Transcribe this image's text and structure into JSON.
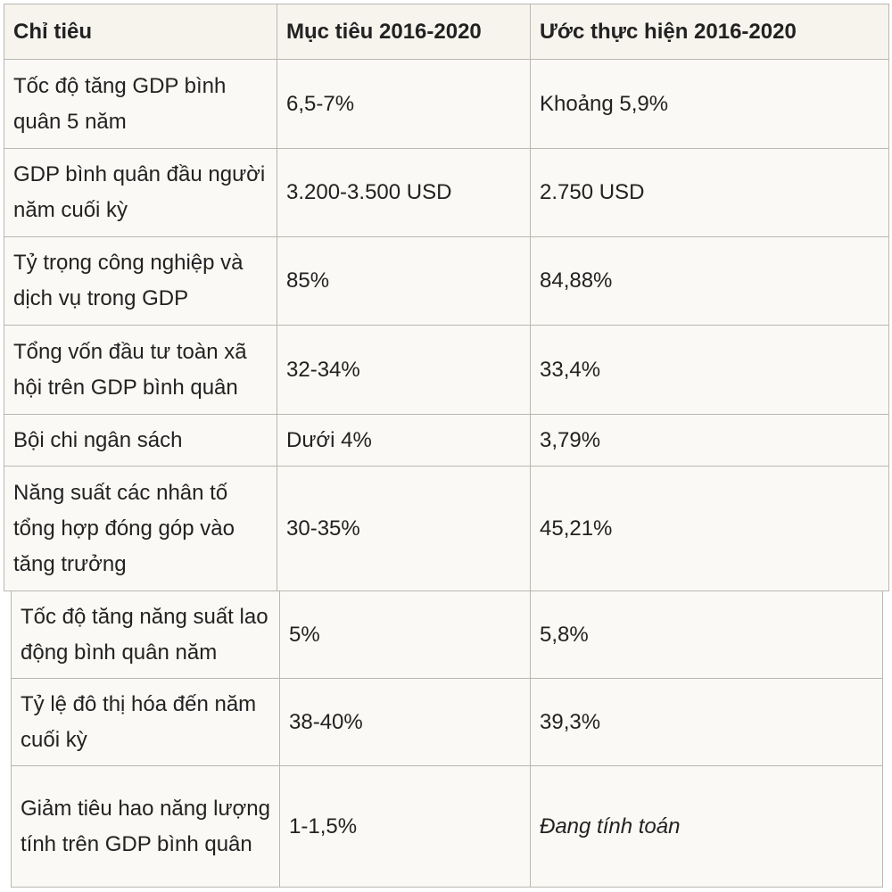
{
  "table": {
    "headers": [
      "Chỉ tiêu",
      "Mục tiêu 2016-2020",
      "Ước thực hiện 2016-2020"
    ],
    "rows_top": [
      {
        "indicator": "Tốc độ tăng GDP bình quân 5 năm",
        "target": "6,5-7%",
        "estimate": "Khoảng 5,9%"
      },
      {
        "indicator": "GDP bình quân đầu người năm cuối kỳ",
        "target": "3.200-3.500 USD",
        "estimate": "2.750 USD"
      },
      {
        "indicator": "Tỷ trọng công nghiệp và dịch vụ trong GDP",
        "target": "85%",
        "estimate": "84,88%"
      },
      {
        "indicator": "Tổng vốn đầu tư toàn xã hội trên GDP bình quân",
        "target": "32-34%",
        "estimate": "33,4%"
      },
      {
        "indicator": "Bội chi ngân sách",
        "target": "Dưới 4%",
        "estimate": "3,79%"
      },
      {
        "indicator": "Năng suất các nhân tố tổng hợp đóng góp vào tăng trưởng",
        "target": "30-35%",
        "estimate": "45,21%"
      }
    ],
    "rows_bottom": [
      {
        "indicator": "Tốc độ tăng năng suất lao động bình quân năm",
        "target": "5%",
        "estimate": "5,8%"
      },
      {
        "indicator": "Tỷ lệ đô thị hóa đến năm cuối kỳ",
        "target": "38-40%",
        "estimate": "39,3%"
      },
      {
        "indicator": "Giảm tiêu hao năng lượng tính trên GDP bình quân",
        "target": "1-1,5%",
        "estimate": "Đang tính toán"
      }
    ]
  }
}
